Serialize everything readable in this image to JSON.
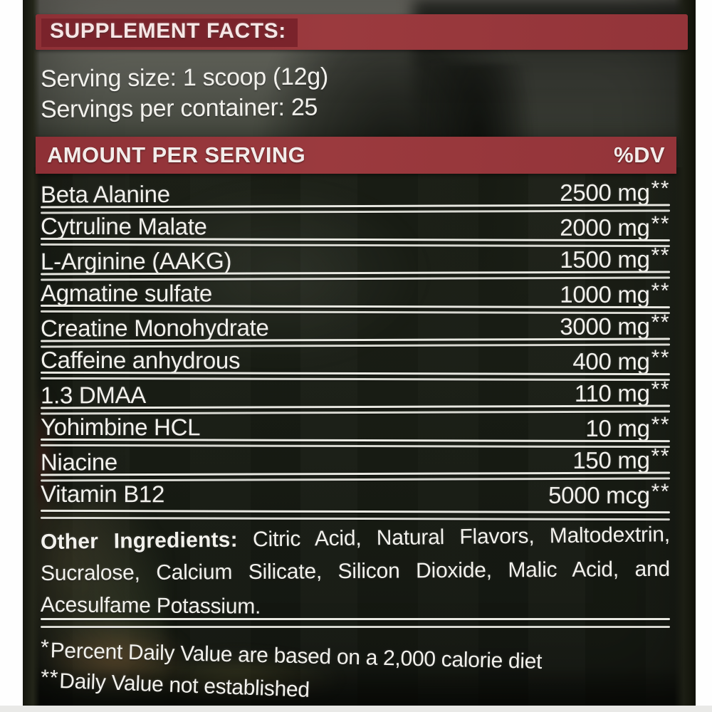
{
  "label": {
    "banner_title": "SUPPLEMENT FACTS:",
    "serving": {
      "size": "Serving size: 1 scoop (12g)",
      "per_container": "Servings per container: 25"
    },
    "table": {
      "header": {
        "amount_label": "AMOUNT PER SERVING",
        "dv_label": "%DV"
      },
      "rows": [
        {
          "name": "Beta Alanine",
          "amount": "2500 mg",
          "dv_mark": "**"
        },
        {
          "name": "Cytruline Malate",
          "amount": "2000 mg",
          "dv_mark": "**"
        },
        {
          "name": "L-Arginine (AAKG)",
          "amount": "1500 mg",
          "dv_mark": "**"
        },
        {
          "name": "Agmatine sulfate",
          "amount": "1000 mg",
          "dv_mark": "**"
        },
        {
          "name": "Creatine Monohydrate",
          "amount": "3000 mg",
          "dv_mark": "**"
        },
        {
          "name": "Caffeine anhydrous",
          "amount": "400 mg",
          "dv_mark": "**"
        },
        {
          "name": "1.3 DMAA",
          "amount": "110 mg",
          "dv_mark": "**"
        },
        {
          "name": "Yohimbine HCL",
          "amount": "10 mg",
          "dv_mark": "**"
        },
        {
          "name": "Niacine",
          "amount": "150 mg",
          "dv_mark": "**"
        },
        {
          "name": "Vitamin B12",
          "amount": "5000 mcg",
          "dv_mark": "**"
        }
      ]
    },
    "other_ingredients": {
      "lead": "Other Ingredients:",
      "line1_rest": " Citric Acid, Natural Flavors, Maltodextrin,",
      "line2": "Sucralose, Calcium Silicate, Silicon Dioxide, Malic Acid, and",
      "line3": "Acesulfame Potassium."
    },
    "footnotes": [
      {
        "mark": "*",
        "text": "Percent Daily Value are based on a 2,000 calorie diet"
      },
      {
        "mark": "**",
        "text": "Daily Value not established"
      }
    ],
    "colors": {
      "banner_red": "#97383c",
      "banner_red_dark": "#7a232b",
      "text_white": "#f2f1ec",
      "background_dark": "#23271e"
    }
  }
}
